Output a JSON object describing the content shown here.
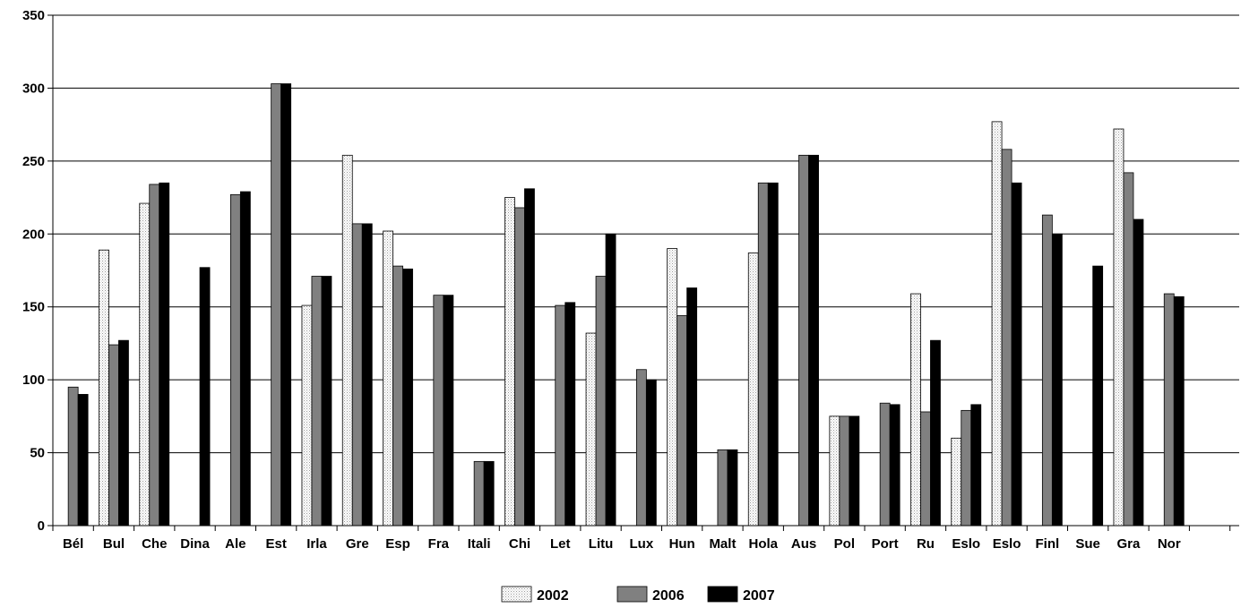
{
  "chart_data": {
    "type": "bar",
    "title": "",
    "xlabel": "",
    "ylabel": "",
    "ylim": [
      0,
      350
    ],
    "yticks": [
      0,
      50,
      100,
      150,
      200,
      250,
      300,
      350
    ],
    "grid": true,
    "legend_position": "bottom-center",
    "categories": [
      "Bél",
      "Bul",
      "Che",
      "Dina",
      "Ale",
      "Est",
      "Irla",
      "Gre",
      "Esp",
      "Fra",
      "Itali",
      "Chi",
      "Let",
      "Litu",
      "Lux",
      "Hun",
      "Malt",
      "Hola",
      "Aus",
      "Pol",
      "Port",
      "Ru",
      "Eslo",
      "Eslo",
      "Finl",
      "Sue",
      "Gra",
      "Nor"
    ],
    "series": [
      {
        "name": "2002",
        "fill": "dotted",
        "values": [
          null,
          189,
          221,
          null,
          null,
          null,
          151,
          254,
          202,
          null,
          null,
          225,
          null,
          132,
          null,
          190,
          null,
          187,
          null,
          75,
          null,
          159,
          60,
          277,
          null,
          null,
          272,
          null
        ]
      },
      {
        "name": "2006",
        "color": "#808080",
        "values": [
          95,
          124,
          234,
          null,
          227,
          303,
          171,
          207,
          178,
          158,
          44,
          218,
          151,
          171,
          107,
          144,
          52,
          235,
          254,
          75,
          84,
          78,
          79,
          258,
          213,
          null,
          242,
          159
        ]
      },
      {
        "name": "2007",
        "color": "#000000",
        "values": [
          90,
          127,
          235,
          177,
          229,
          303,
          171,
          207,
          176,
          158,
          44,
          231,
          153,
          200,
          100,
          163,
          52,
          235,
          254,
          75,
          83,
          127,
          83,
          235,
          200,
          178,
          210,
          157
        ]
      }
    ]
  }
}
